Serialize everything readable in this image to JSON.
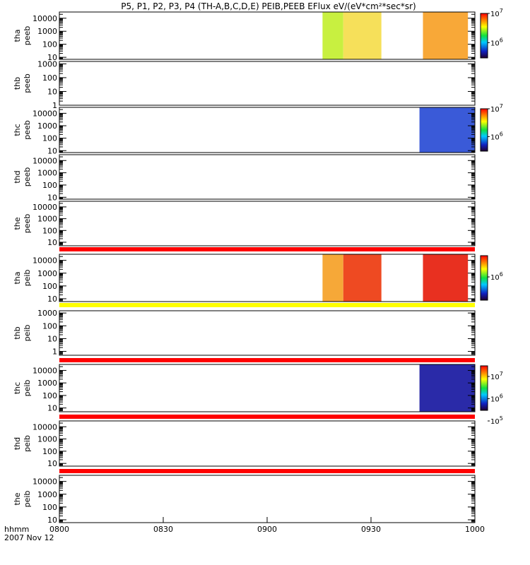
{
  "title": "P5, P1, P2, P3, P4 (TH-A,B,C,D,E) PEIB,PEEB EFlux eV/(eV*cm²*sec*sr)",
  "chart_data": {
    "type": "heatmap",
    "x_axis": {
      "range": [
        "0800",
        "1000"
      ],
      "tick_labels": [
        "0800",
        "0830",
        "0900",
        "0930",
        "1000"
      ],
      "label": "hhmm",
      "date": "2007 Nov 12"
    },
    "panels": [
      {
        "probe": "tha",
        "instrument": "peeb",
        "ylabel_top": "tha",
        "ylabel_bottom": "peeb",
        "ylim": [
          7,
          30000
        ],
        "yscale": "log",
        "ytick_labels": [
          "10",
          "100",
          "1000",
          "10000"
        ],
        "colorbar": {
          "range": [
            300000,
            10000000
          ],
          "tick_labels": [
            "10",
            "10"
          ],
          "tick_exponents": [
            "7",
            "6"
          ]
        },
        "data_intervals": [
          {
            "start": "0916",
            "end": "0922",
            "color": "#c8f040"
          },
          {
            "start": "0922",
            "end": "0933",
            "color": "#f6e05a"
          },
          {
            "start": "0945",
            "end": "0958",
            "color": "#f8a838"
          }
        ]
      },
      {
        "probe": "thb",
        "instrument": "peeb",
        "ylabel_top": "thb",
        "ylabel_bottom": "peeb",
        "ylim": [
          1,
          1500
        ],
        "yscale": "log",
        "ytick_labels": [
          "1",
          "10",
          "100",
          "1000"
        ],
        "colorbar": null,
        "data_intervals": []
      },
      {
        "probe": "thc",
        "instrument": "peeb",
        "ylabel_top": "thc",
        "ylabel_bottom": "peeb",
        "ylim": [
          7,
          30000
        ],
        "yscale": "log",
        "ytick_labels": [
          "10",
          "100",
          "1000",
          "10000"
        ],
        "colorbar": {
          "range": [
            300000,
            10000000
          ],
          "tick_labels": [
            "10",
            "10"
          ],
          "tick_exponents": [
            "7",
            "6"
          ]
        },
        "data_intervals": [
          {
            "start": "0944",
            "end": "1000",
            "color": "#3a5ad8"
          }
        ]
      },
      {
        "probe": "thd",
        "instrument": "peeb",
        "ylabel_top": "thd",
        "ylabel_bottom": "peeb",
        "ylim": [
          7,
          30000
        ],
        "yscale": "log",
        "ytick_labels": [
          "10",
          "100",
          "1000",
          "10000"
        ],
        "colorbar": null,
        "data_intervals": []
      },
      {
        "probe": "the",
        "instrument": "peeb",
        "ylabel_top": "the",
        "ylabel_bottom": "peeb",
        "ylim": [
          5,
          30000
        ],
        "yscale": "log",
        "ytick_labels": [
          "10",
          "100",
          "1000",
          "10000"
        ],
        "colorbar": null,
        "data_intervals": []
      },
      {
        "probe": "tha",
        "instrument": "peib",
        "ylabel_top": "tha",
        "ylabel_bottom": "peib",
        "ylim": [
          6,
          30000
        ],
        "yscale": "log",
        "ytick_labels": [
          "10",
          "100",
          "1000",
          "10000"
        ],
        "colorbar": {
          "range": [
            300000,
            3000000
          ],
          "tick_labels": [
            "10"
          ],
          "tick_exponents": [
            "6"
          ]
        },
        "data_intervals": [
          {
            "start": "0916",
            "end": "0922",
            "color": "#f6a838"
          },
          {
            "start": "0922",
            "end": "0933",
            "color": "#ee4a22"
          },
          {
            "start": "0945",
            "end": "0958",
            "color": "#e83020"
          }
        ]
      },
      {
        "probe": "thb",
        "instrument": "peib",
        "ylabel_top": "thb",
        "ylabel_bottom": "peib",
        "ylim": [
          0.5,
          1500
        ],
        "yscale": "log",
        "ytick_labels": [
          "1",
          "10",
          "100",
          "1000"
        ],
        "colorbar": null,
        "data_intervals": []
      },
      {
        "probe": "thc",
        "instrument": "peib",
        "ylabel_top": "thc",
        "ylabel_bottom": "peib",
        "ylim": [
          5,
          30000
        ],
        "yscale": "log",
        "ytick_labels": [
          "10",
          "100",
          "1000",
          "10000"
        ],
        "colorbar": {
          "range": [
            300000,
            30000000
          ],
          "tick_labels": [
            "10",
            "10",
            "10"
          ],
          "tick_exponents": [
            "7",
            "6",
            "5"
          ]
        },
        "data_intervals": [
          {
            "start": "0944",
            "end": "1000",
            "color": "#2a2aa8"
          }
        ]
      },
      {
        "probe": "thd",
        "instrument": "peib",
        "ylabel_top": "thd",
        "ylabel_bottom": "peib",
        "ylim": [
          6,
          30000
        ],
        "yscale": "log",
        "ytick_labels": [
          "10",
          "100",
          "1000",
          "10000"
        ],
        "colorbar": null,
        "data_intervals": []
      },
      {
        "probe": "the",
        "instrument": "peib",
        "ylabel_top": "the",
        "ylabel_bottom": "peib",
        "ylim": [
          6,
          30000
        ],
        "yscale": "log",
        "ytick_labels": [
          "10",
          "100",
          "1000",
          "10000"
        ],
        "colorbar": null,
        "data_intervals": []
      }
    ],
    "separator_bars": [
      {
        "color": "#ff0000"
      },
      {
        "color": "#ffff00"
      },
      {
        "color": "#ff0000"
      },
      {
        "color": "#ff0000"
      },
      {
        "color": "#ff0000"
      }
    ]
  }
}
